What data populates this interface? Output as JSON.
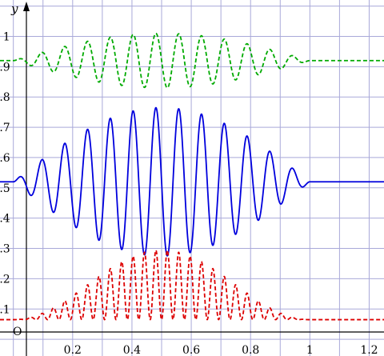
{
  "chart_data": {
    "type": "line",
    "title": "",
    "xlabel": "",
    "ylabel": "y",
    "origin_label": "O",
    "xlim": [
      -0.045,
      1.25
    ],
    "ylim": [
      -0.055,
      1.12
    ],
    "grid": true,
    "grid_color": "#a9a9d9",
    "x_ticks": [
      {
        "value": 0.2,
        "label": "0.2"
      },
      {
        "value": 0.4,
        "label": "0.4"
      },
      {
        "value": 0.6,
        "label": "0.6"
      },
      {
        "value": 0.8,
        "label": "0.8"
      },
      {
        "value": 1.0,
        "label": "1"
      },
      {
        "value": 1.2,
        "label": "1.2"
      }
    ],
    "y_ticks": [
      {
        "value": 0.1,
        "label": "0.1"
      },
      {
        "value": 0.2,
        "label": "0.2"
      },
      {
        "value": 0.3,
        "label": "0.3"
      },
      {
        "value": 0.4,
        "label": "0.4"
      },
      {
        "value": 0.5,
        "label": "0.5"
      },
      {
        "value": 0.6,
        "label": "0.6"
      },
      {
        "value": 0.7,
        "label": "0.7"
      },
      {
        "value": 0.8,
        "label": "0.8"
      },
      {
        "value": 0.9,
        "label": "0.9"
      },
      {
        "value": 1.0,
        "label": "1"
      }
    ],
    "series": [
      {
        "color": "#00aa00",
        "style": "dashed",
        "kind": "oscillation",
        "baseline": 0.92,
        "amplitude": 0.09,
        "carrier_cycles": 13,
        "envelope": "sin",
        "x_range": [
          0,
          1
        ],
        "x_extent": [
          -0.045,
          1.25
        ]
      },
      {
        "color": "#0000dd",
        "style": "solid",
        "kind": "oscillation",
        "baseline": 0.52,
        "amplitude": 0.245,
        "carrier_cycles": 13,
        "envelope": "sin",
        "x_range": [
          0,
          1
        ],
        "x_extent": [
          -0.045,
          1.25
        ]
      },
      {
        "color": "#dd0000",
        "style": "dashed",
        "kind": "squared",
        "baseline": 0.065,
        "amplitude": 0.23,
        "carrier_cycles": 13,
        "envelope": "sin",
        "x_range": [
          0,
          1
        ],
        "x_extent": [
          -0.045,
          1.25
        ]
      }
    ]
  }
}
